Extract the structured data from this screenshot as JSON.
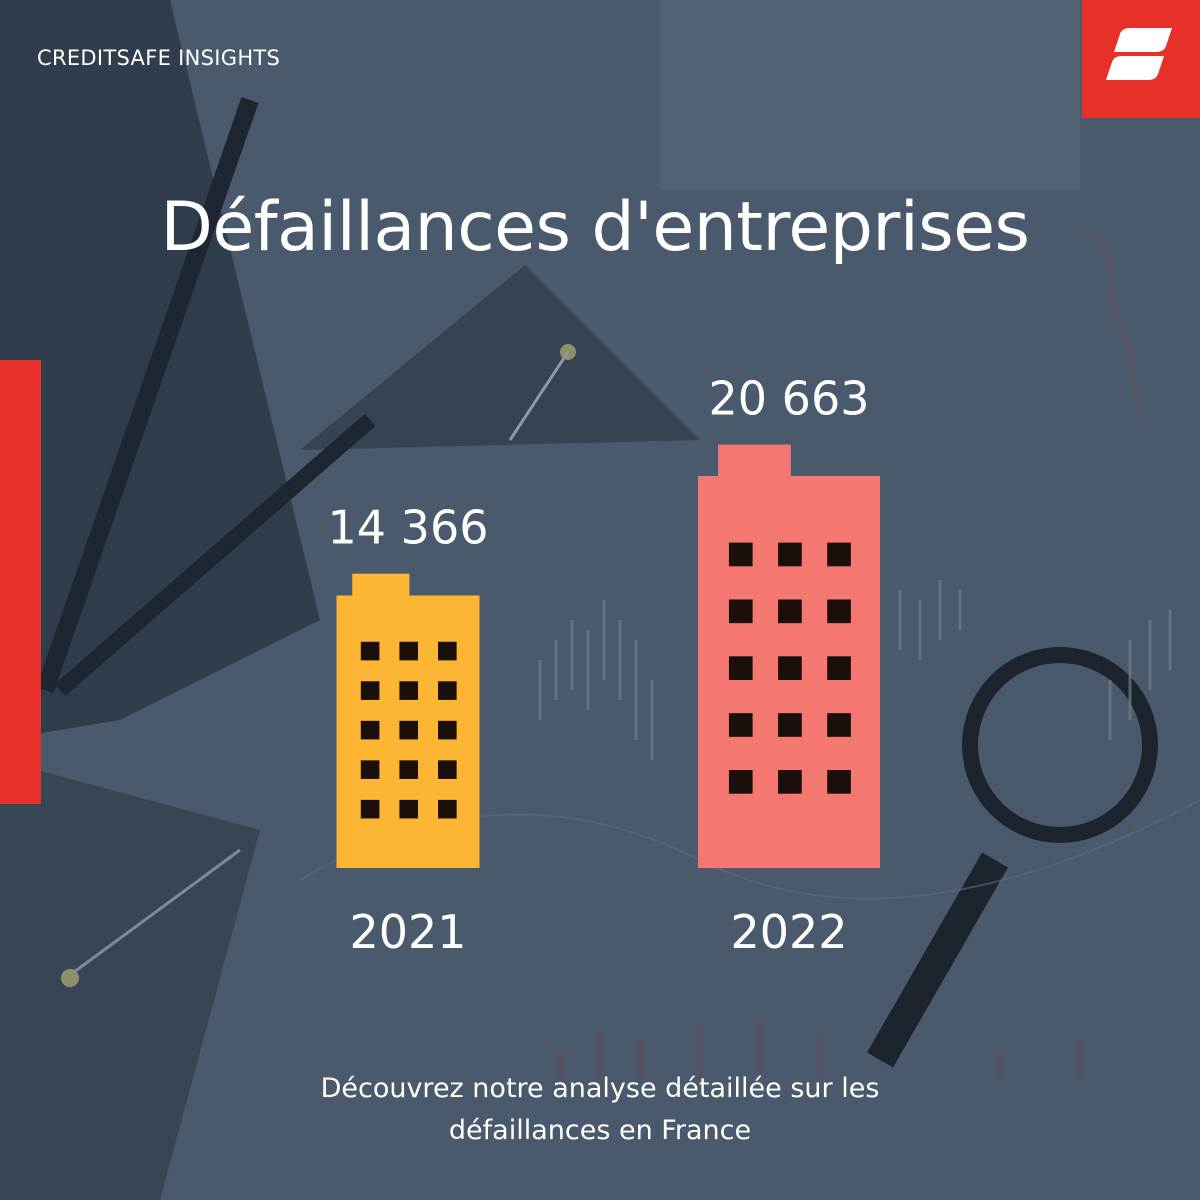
{
  "header": {
    "brand": "CREDITSAFE INSIGHTS",
    "logo_icon": "creditsafe-logo-icon"
  },
  "colors": {
    "accent_red": "#e8302a",
    "bar_2021": "#fcb634",
    "bar_2022": "#f47771",
    "window": "#1a0f0a",
    "background": "#4a5a6c"
  },
  "chart_data": {
    "type": "bar",
    "title": "Défaillances d'entreprises",
    "categories": [
      "2021",
      "2022"
    ],
    "values": [
      14366,
      20663
    ],
    "value_labels": [
      "14 366",
      "20 663"
    ],
    "bar_colors": [
      "#fcb634",
      "#f47771"
    ],
    "mark_style": "building-icon"
  },
  "footer": {
    "line1": "Découvrez notre analyse détaillée sur les",
    "line2": "défaillances en France"
  }
}
